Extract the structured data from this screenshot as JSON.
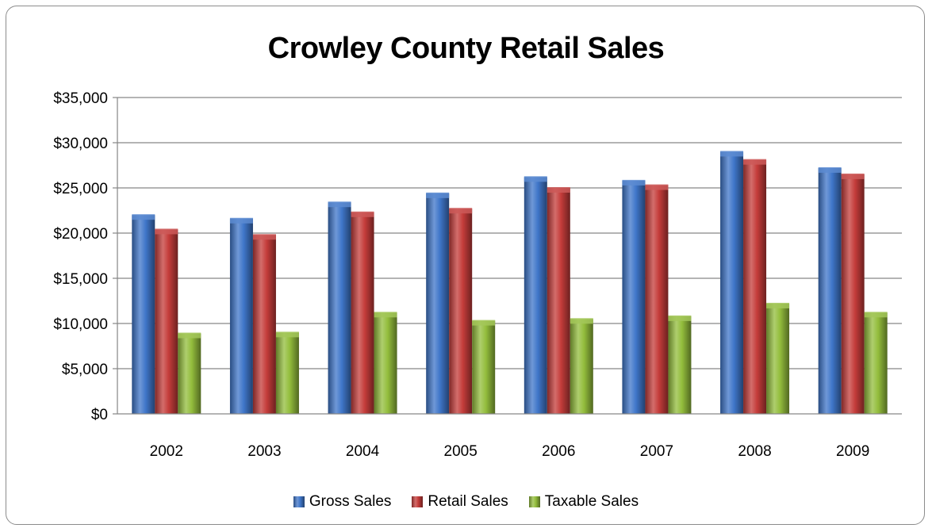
{
  "chart_data": {
    "type": "bar",
    "title": "Crowley County Retail Sales",
    "categories": [
      "2002",
      "2003",
      "2004",
      "2005",
      "2006",
      "2007",
      "2008",
      "2009"
    ],
    "series": [
      {
        "name": "Gross Sales",
        "color": "#3f76c9",
        "values": [
          22000,
          21600,
          23400,
          24400,
          26200,
          25800,
          29000,
          27200
        ]
      },
      {
        "name": "Retail Sales",
        "color": "#c43c3a",
        "values": [
          20400,
          19800,
          22300,
          22700,
          25000,
          25300,
          28100,
          26500
        ]
      },
      {
        "name": "Taxable Sales",
        "color": "#93bd3c",
        "values": [
          8900,
          9000,
          11200,
          10300,
          10500,
          10800,
          12200,
          11200
        ]
      }
    ],
    "yticks": [
      "$0",
      "$5,000",
      "$10,000",
      "$15,000",
      "$20,000",
      "$25,000",
      "$30,000",
      "$35,000"
    ],
    "ylim": [
      0,
      35000
    ],
    "grid": true,
    "legend": "bottom"
  }
}
